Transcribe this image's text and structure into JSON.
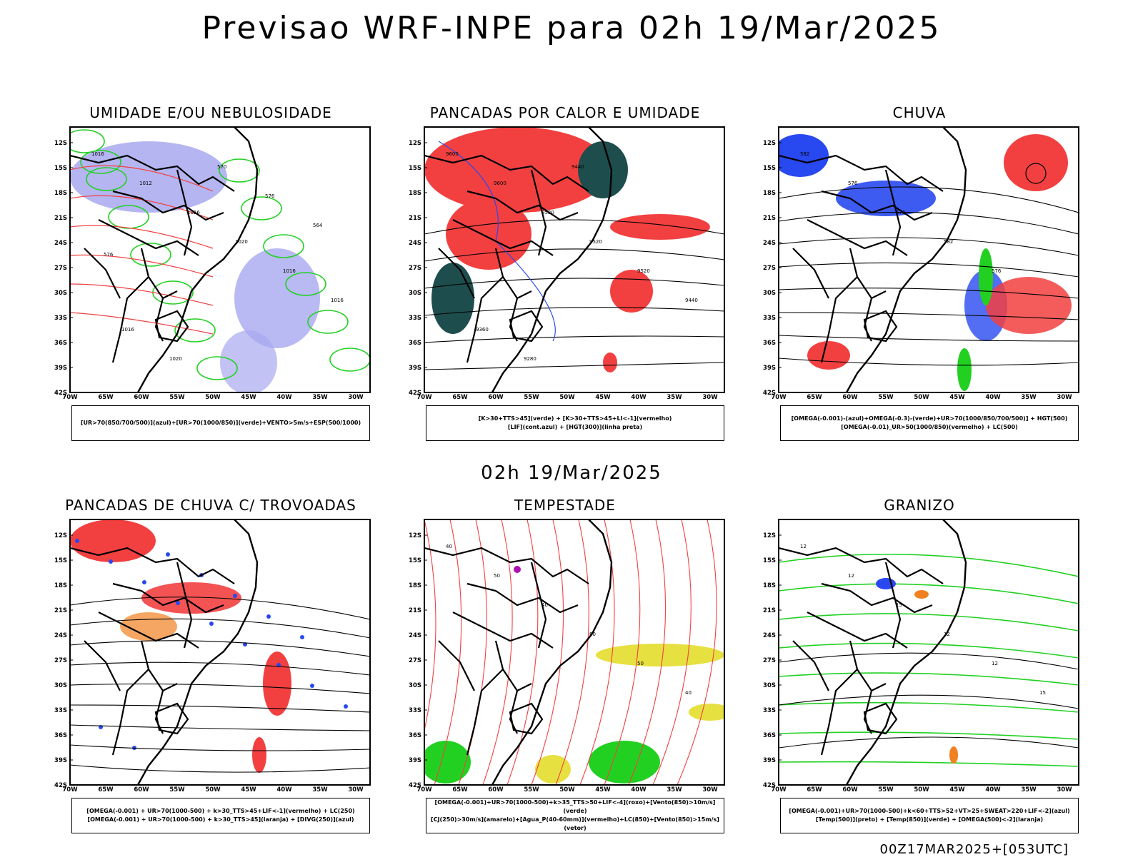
{
  "header": {
    "title": "Previsao WRF-INPE  para 02h 19/Mar/2025"
  },
  "middle": {
    "date": "02h 19/Mar/2025"
  },
  "footer": {
    "run": "00Z17MAR2025+[053UTC]"
  },
  "axes": {
    "lat": [
      "12S",
      "15S",
      "18S",
      "21S",
      "24S",
      "27S",
      "30S",
      "33S",
      "36S",
      "39S",
      "42S"
    ],
    "lon": [
      "70W",
      "65W",
      "60W",
      "55W",
      "50W",
      "45W",
      "40W",
      "35W",
      "30W"
    ]
  },
  "colors": {
    "red": "#f24040",
    "blue": "#2848f0",
    "green": "#22d022",
    "lavender": "#a8a8f0",
    "darkteal": "#1e4d4d",
    "yellow": "#e6e040",
    "orange": "#f08020",
    "purple": "#b010b0"
  },
  "panels": [
    {
      "title": "UMIDADE E/OU NEBULOSIDADE",
      "legend": [
        "[UR>70(850/700/500)](azul)+[UR>70(1000/850)](verde)+VENTO>5m/s+ESP(500/1000)"
      ],
      "labels": [
        "1016",
        "1012",
        "1016",
        "1020",
        "1016",
        "1016",
        "1016",
        "1020",
        "570",
        "576",
        "564",
        "576"
      ]
    },
    {
      "title": "PANCADAS POR CALOR E UMIDADE",
      "legend": [
        "[K>30+TTS>45](verde) + [K>30+TTS>45+LI<-1](vermelho)",
        "[LIF](cont.azul) + [HGT(300)](linha preta)"
      ],
      "labels": [
        "9600",
        "9600",
        "9520",
        "9520",
        "9520",
        "9440",
        "9360",
        "9280",
        "9440"
      ]
    },
    {
      "title": "CHUVA",
      "legend": [
        "[OMEGA(-0.001)-(azul)+OMEGA(-0.3)-(verde)+UR>70(1000/850/700/500)] + HGT(500)",
        "[OMEGA(-0.01)_UR>50(1000/850)(vermelho) + LC(500)"
      ],
      "labels": [
        "582",
        "576",
        "570",
        "582",
        "576"
      ]
    },
    {
      "title": "PANCADAS DE CHUVA C/ TROVOADAS",
      "legend": [
        "[OMEGA(-0.001) + UR>70(1000-500) + k>30_TTS>45+LIF<-1](vermelho) + LC(250)",
        "[OMEGA(-0.001) + UR>70(1000-500) + k>30_TTS>45](laranja) + [DIVG(250)](azul)"
      ],
      "labels": []
    },
    {
      "title": "TEMPESTADE",
      "legend": [
        "[OMEGA(-0.001)+UR>70(1000-500)+k>35_TTS>50+LIF<-4](roxo)+[Vento(850)>10m/s](verde)",
        "[CJ(250)>30m/s](amarelo)+[Agua_P(40-60mm)](vermelho)+LC(850)+[Vento(850)>15m/s](vetor)"
      ],
      "labels": [
        "40",
        "50",
        "40",
        "60",
        "50",
        "40"
      ]
    },
    {
      "title": "GRANIZO",
      "legend": [
        "[OMEGA(-0.001)+UR>70(1000-500)+k<60+TTS>52+VT>25+SWEAT>220+LIF<-2](azul)",
        "[Temp(500)](preto) + [Temp(850)](verde) + [OMEGA(500)<-2](laranja)"
      ],
      "labels": [
        "12",
        "12",
        "15",
        "12",
        "12",
        "15"
      ]
    }
  ]
}
